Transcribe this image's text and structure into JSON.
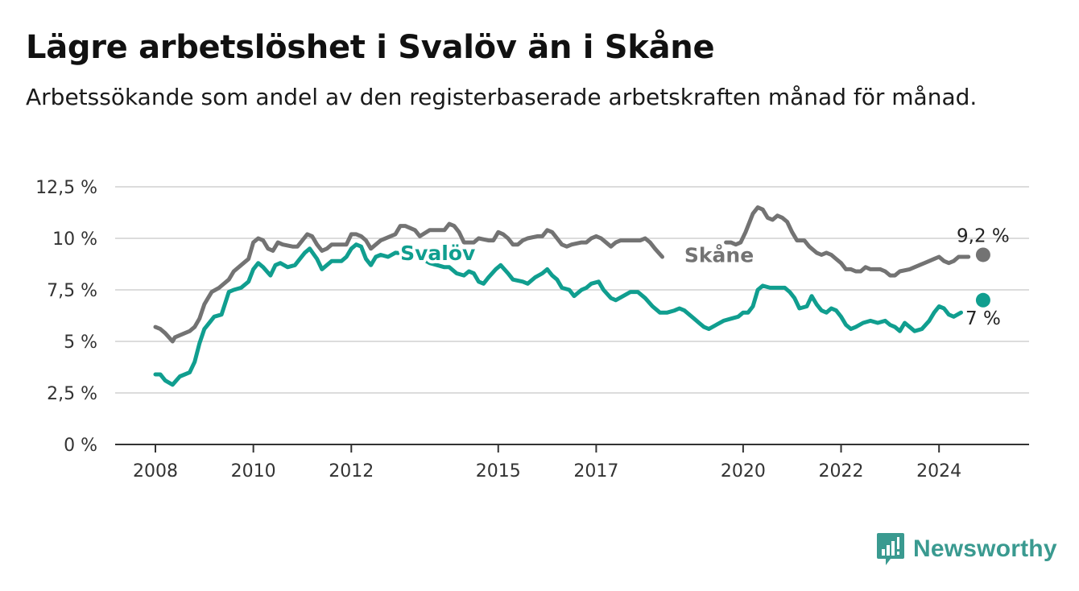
{
  "title": "Lägre arbetslöshet i Svalöv än i Skåne",
  "subtitle": "Arbetssökande som andel av den registerbaserade arbetskraften månad för månad.",
  "brand": "Newsworthy",
  "colors": {
    "skane": "#737373",
    "svalov": "#109e8f",
    "grid": "#dcdcdc",
    "axis": "#333333"
  },
  "chart_data": {
    "type": "line",
    "xlim": [
      2008,
      2025
    ],
    "ylim": [
      0,
      12.5
    ],
    "x_ticks": [
      {
        "label": "2008",
        "value": 2008
      },
      {
        "label": "2010",
        "value": 2010
      },
      {
        "label": "2012",
        "value": 2012
      },
      {
        "label": "2015",
        "value": 2015
      },
      {
        "label": "2017",
        "value": 2017
      },
      {
        "label": "2020",
        "value": 2020
      },
      {
        "label": "2022",
        "value": 2022
      },
      {
        "label": "2024",
        "value": 2024
      }
    ],
    "y_ticks": [
      {
        "label": "0 %",
        "value": 0
      },
      {
        "label": "2,5 %",
        "value": 2.5
      },
      {
        "label": "5 %",
        "value": 5
      },
      {
        "label": "7,5 %",
        "value": 7.5
      },
      {
        "label": "10 %",
        "value": 10
      },
      {
        "label": "12,5 %",
        "value": 12.5
      }
    ],
    "grid": true,
    "series": [
      {
        "name": "Skåne",
        "label_x": 2018.8,
        "label_y": 9.2,
        "end_label": "9,2 %",
        "end": [
          2024.9,
          9.2
        ],
        "points": [
          [
            2008.0,
            5.7
          ],
          [
            2008.1,
            5.6
          ],
          [
            2008.2,
            5.4
          ],
          [
            2008.35,
            5.0
          ],
          [
            2008.4,
            5.2
          ],
          [
            2008.5,
            5.3
          ],
          [
            2008.7,
            5.5
          ],
          [
            2008.8,
            5.7
          ],
          [
            2008.9,
            6.1
          ],
          [
            2009.0,
            6.8
          ],
          [
            2009.15,
            7.4
          ],
          [
            2009.3,
            7.6
          ],
          [
            2009.5,
            8.0
          ],
          [
            2009.6,
            8.4
          ],
          [
            2009.75,
            8.7
          ],
          [
            2009.9,
            9.0
          ],
          [
            2010.0,
            9.8
          ],
          [
            2010.1,
            10.0
          ],
          [
            2010.2,
            9.9
          ],
          [
            2010.3,
            9.5
          ],
          [
            2010.4,
            9.4
          ],
          [
            2010.5,
            9.8
          ],
          [
            2010.6,
            9.7
          ],
          [
            2010.8,
            9.6
          ],
          [
            2010.9,
            9.6
          ],
          [
            2011.0,
            9.9
          ],
          [
            2011.1,
            10.2
          ],
          [
            2011.2,
            10.1
          ],
          [
            2011.3,
            9.7
          ],
          [
            2011.4,
            9.4
          ],
          [
            2011.5,
            9.5
          ],
          [
            2011.6,
            9.7
          ],
          [
            2011.8,
            9.7
          ],
          [
            2011.9,
            9.7
          ],
          [
            2012.0,
            10.2
          ],
          [
            2012.1,
            10.2
          ],
          [
            2012.2,
            10.1
          ],
          [
            2012.3,
            9.9
          ],
          [
            2012.4,
            9.5
          ],
          [
            2012.5,
            9.7
          ],
          [
            2012.6,
            9.9
          ],
          [
            2012.8,
            10.1
          ],
          [
            2012.9,
            10.2
          ],
          [
            2013.0,
            10.6
          ],
          [
            2013.1,
            10.6
          ],
          [
            2013.2,
            10.5
          ],
          [
            2013.3,
            10.4
          ],
          [
            2013.4,
            10.1
          ],
          [
            2013.6,
            10.4
          ],
          [
            2013.8,
            10.4
          ],
          [
            2013.9,
            10.4
          ],
          [
            2014.0,
            10.7
          ],
          [
            2014.1,
            10.6
          ],
          [
            2014.2,
            10.3
          ],
          [
            2014.3,
            9.8
          ],
          [
            2014.5,
            9.8
          ],
          [
            2014.6,
            10.0
          ],
          [
            2014.8,
            9.9
          ],
          [
            2014.9,
            9.9
          ],
          [
            2015.0,
            10.3
          ],
          [
            2015.1,
            10.2
          ],
          [
            2015.2,
            10.0
          ],
          [
            2015.3,
            9.7
          ],
          [
            2015.4,
            9.7
          ],
          [
            2015.5,
            9.9
          ],
          [
            2015.6,
            10.0
          ],
          [
            2015.8,
            10.1
          ],
          [
            2015.9,
            10.1
          ],
          [
            2016.0,
            10.4
          ],
          [
            2016.1,
            10.3
          ],
          [
            2016.2,
            10.0
          ],
          [
            2016.3,
            9.7
          ],
          [
            2016.4,
            9.6
          ],
          [
            2016.5,
            9.7
          ],
          [
            2016.7,
            9.8
          ],
          [
            2016.8,
            9.8
          ],
          [
            2016.9,
            10.0
          ],
          [
            2017.0,
            10.1
          ],
          [
            2017.1,
            10.0
          ],
          [
            2017.2,
            9.8
          ],
          [
            2017.3,
            9.6
          ],
          [
            2017.4,
            9.8
          ],
          [
            2017.5,
            9.9
          ],
          [
            2017.7,
            9.9
          ],
          [
            2017.9,
            9.9
          ],
          [
            2018.0,
            10.0
          ],
          [
            2018.1,
            9.8
          ],
          [
            2018.2,
            9.5
          ],
          [
            2018.35,
            9.1
          ],
          [
            2019.65,
            9.8
          ],
          [
            2019.75,
            9.8
          ],
          [
            2019.85,
            9.7
          ],
          [
            2019.95,
            9.8
          ],
          [
            2020.05,
            10.3
          ],
          [
            2020.2,
            11.2
          ],
          [
            2020.3,
            11.5
          ],
          [
            2020.4,
            11.4
          ],
          [
            2020.5,
            11.0
          ],
          [
            2020.6,
            10.9
          ],
          [
            2020.7,
            11.1
          ],
          [
            2020.8,
            11.0
          ],
          [
            2020.9,
            10.8
          ],
          [
            2021.0,
            10.3
          ],
          [
            2021.1,
            9.9
          ],
          [
            2021.25,
            9.9
          ],
          [
            2021.35,
            9.6
          ],
          [
            2021.5,
            9.3
          ],
          [
            2021.6,
            9.2
          ],
          [
            2021.7,
            9.3
          ],
          [
            2021.8,
            9.2
          ],
          [
            2021.9,
            9.0
          ],
          [
            2022.0,
            8.8
          ],
          [
            2022.1,
            8.5
          ],
          [
            2022.2,
            8.5
          ],
          [
            2022.3,
            8.4
          ],
          [
            2022.4,
            8.4
          ],
          [
            2022.5,
            8.6
          ],
          [
            2022.6,
            8.5
          ],
          [
            2022.7,
            8.5
          ],
          [
            2022.8,
            8.5
          ],
          [
            2022.9,
            8.4
          ],
          [
            2023.0,
            8.2
          ],
          [
            2023.1,
            8.2
          ],
          [
            2023.2,
            8.4
          ],
          [
            2023.4,
            8.5
          ],
          [
            2023.5,
            8.6
          ],
          [
            2023.6,
            8.7
          ],
          [
            2023.8,
            8.9
          ],
          [
            2023.9,
            9.0
          ],
          [
            2024.0,
            9.1
          ],
          [
            2024.1,
            8.9
          ],
          [
            2024.2,
            8.8
          ],
          [
            2024.3,
            8.9
          ],
          [
            2024.4,
            9.1
          ],
          [
            2024.6,
            9.1
          ]
        ]
      },
      {
        "name": "Svalöv",
        "label_x": 2013.0,
        "label_y": 9.3,
        "end_label": "7 %",
        "end": [
          2024.9,
          7.0
        ],
        "points": [
          [
            2008.0,
            3.4
          ],
          [
            2008.1,
            3.4
          ],
          [
            2008.2,
            3.1
          ],
          [
            2008.35,
            2.9
          ],
          [
            2008.5,
            3.3
          ],
          [
            2008.6,
            3.4
          ],
          [
            2008.7,
            3.5
          ],
          [
            2008.8,
            4.0
          ],
          [
            2008.9,
            4.9
          ],
          [
            2009.0,
            5.6
          ],
          [
            2009.1,
            5.9
          ],
          [
            2009.2,
            6.2
          ],
          [
            2009.35,
            6.3
          ],
          [
            2009.5,
            7.4
          ],
          [
            2009.6,
            7.5
          ],
          [
            2009.75,
            7.6
          ],
          [
            2009.9,
            7.9
          ],
          [
            2010.0,
            8.5
          ],
          [
            2010.1,
            8.8
          ],
          [
            2010.2,
            8.6
          ],
          [
            2010.35,
            8.2
          ],
          [
            2010.45,
            8.7
          ],
          [
            2010.55,
            8.8
          ],
          [
            2010.7,
            8.6
          ],
          [
            2010.85,
            8.7
          ],
          [
            2010.95,
            9.0
          ],
          [
            2011.05,
            9.3
          ],
          [
            2011.15,
            9.5
          ],
          [
            2011.3,
            9.0
          ],
          [
            2011.4,
            8.5
          ],
          [
            2011.5,
            8.7
          ],
          [
            2011.6,
            8.9
          ],
          [
            2011.8,
            8.9
          ],
          [
            2011.9,
            9.1
          ],
          [
            2012.0,
            9.5
          ],
          [
            2012.1,
            9.7
          ],
          [
            2012.2,
            9.6
          ],
          [
            2012.3,
            9.0
          ],
          [
            2012.4,
            8.7
          ],
          [
            2012.5,
            9.1
          ],
          [
            2012.6,
            9.2
          ],
          [
            2012.75,
            9.1
          ],
          [
            2012.9,
            9.3
          ],
          [
            2013.3,
            9.2
          ],
          [
            2013.6,
            8.8
          ],
          [
            2013.9,
            8.6
          ],
          [
            2014.0,
            8.6
          ],
          [
            2014.15,
            8.3
          ],
          [
            2014.3,
            8.2
          ],
          [
            2014.4,
            8.4
          ],
          [
            2014.5,
            8.3
          ],
          [
            2014.6,
            7.9
          ],
          [
            2014.7,
            7.8
          ],
          [
            2014.8,
            8.1
          ],
          [
            2014.95,
            8.5
          ],
          [
            2015.05,
            8.7
          ],
          [
            2015.2,
            8.3
          ],
          [
            2015.3,
            8.0
          ],
          [
            2015.5,
            7.9
          ],
          [
            2015.6,
            7.8
          ],
          [
            2015.75,
            8.1
          ],
          [
            2015.9,
            8.3
          ],
          [
            2016.0,
            8.5
          ],
          [
            2016.1,
            8.2
          ],
          [
            2016.2,
            8.0
          ],
          [
            2016.3,
            7.6
          ],
          [
            2016.45,
            7.5
          ],
          [
            2016.55,
            7.2
          ],
          [
            2016.7,
            7.5
          ],
          [
            2016.8,
            7.6
          ],
          [
            2016.9,
            7.8
          ],
          [
            2017.05,
            7.9
          ],
          [
            2017.15,
            7.5
          ],
          [
            2017.3,
            7.1
          ],
          [
            2017.4,
            7.0
          ],
          [
            2017.55,
            7.2
          ],
          [
            2017.7,
            7.4
          ],
          [
            2017.85,
            7.4
          ],
          [
            2018.0,
            7.1
          ],
          [
            2018.15,
            6.7
          ],
          [
            2018.3,
            6.4
          ],
          [
            2018.45,
            6.4
          ],
          [
            2018.6,
            6.5
          ],
          [
            2018.7,
            6.6
          ],
          [
            2018.8,
            6.5
          ],
          [
            2018.9,
            6.3
          ],
          [
            2019.0,
            6.1
          ],
          [
            2019.1,
            5.9
          ],
          [
            2019.2,
            5.7
          ],
          [
            2019.3,
            5.6
          ],
          [
            2019.45,
            5.8
          ],
          [
            2019.6,
            6.0
          ],
          [
            2019.75,
            6.1
          ],
          [
            2019.9,
            6.2
          ],
          [
            2020.0,
            6.4
          ],
          [
            2020.1,
            6.4
          ],
          [
            2020.2,
            6.7
          ],
          [
            2020.3,
            7.5
          ],
          [
            2020.4,
            7.7
          ],
          [
            2020.55,
            7.6
          ],
          [
            2020.7,
            7.6
          ],
          [
            2020.85,
            7.6
          ],
          [
            2020.95,
            7.4
          ],
          [
            2021.05,
            7.1
          ],
          [
            2021.15,
            6.6
          ],
          [
            2021.3,
            6.7
          ],
          [
            2021.4,
            7.2
          ],
          [
            2021.5,
            6.8
          ],
          [
            2021.6,
            6.5
          ],
          [
            2021.7,
            6.4
          ],
          [
            2021.8,
            6.6
          ],
          [
            2021.9,
            6.5
          ],
          [
            2022.0,
            6.2
          ],
          [
            2022.1,
            5.8
          ],
          [
            2022.2,
            5.6
          ],
          [
            2022.3,
            5.7
          ],
          [
            2022.45,
            5.9
          ],
          [
            2022.6,
            6.0
          ],
          [
            2022.75,
            5.9
          ],
          [
            2022.9,
            6.0
          ],
          [
            2023.0,
            5.8
          ],
          [
            2023.1,
            5.7
          ],
          [
            2023.2,
            5.5
          ],
          [
            2023.3,
            5.9
          ],
          [
            2023.4,
            5.7
          ],
          [
            2023.5,
            5.5
          ],
          [
            2023.65,
            5.6
          ],
          [
            2023.8,
            6.0
          ],
          [
            2023.9,
            6.4
          ],
          [
            2024.0,
            6.7
          ],
          [
            2024.1,
            6.6
          ],
          [
            2024.2,
            6.3
          ],
          [
            2024.3,
            6.2
          ],
          [
            2024.45,
            6.4
          ]
        ]
      }
    ]
  }
}
